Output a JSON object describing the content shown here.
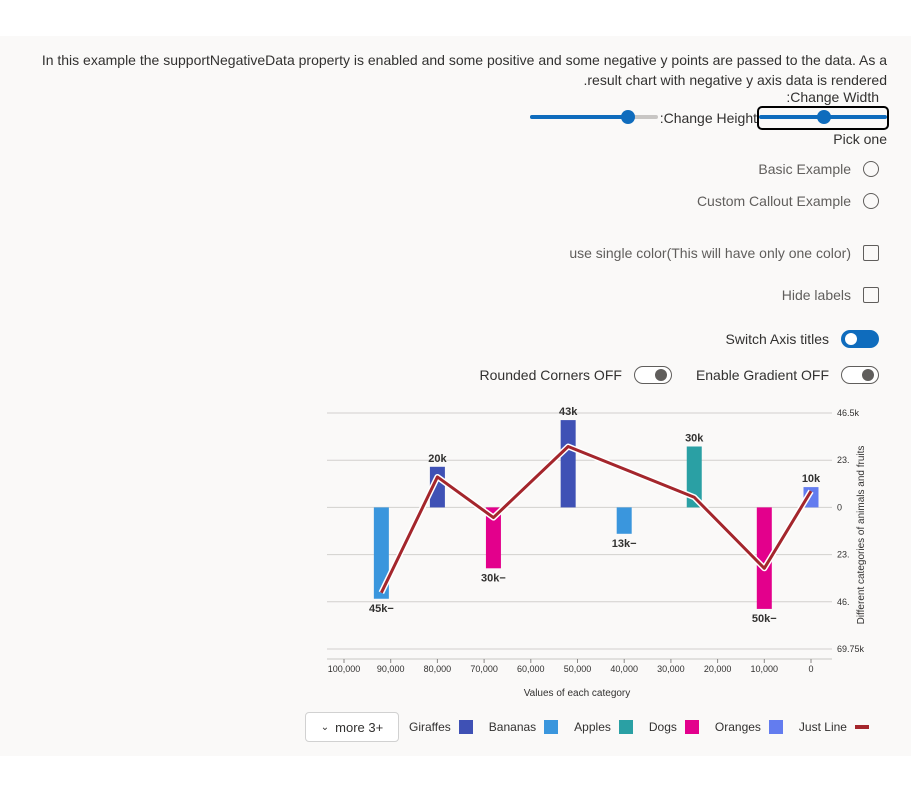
{
  "description": {
    "line1": "In this example the supportNegativeData property is enabled and some positive and some negative y points are passed to the data. As a",
    "line2": ".result chart with negative y axis data is rendered"
  },
  "controls": {
    "change_width_label": ":Change Width",
    "change_height_label": ":Change Height",
    "width_slider_value": 0.78,
    "height_slider_value": 0.5,
    "pick_one_label": "Pick one",
    "radio_basic_label": "Basic Example",
    "radio_custom_label": "Custom Callout Example",
    "single_color_label": "use single color(This will have only one color)",
    "hide_labels_label": "Hide labels",
    "switch_axis_label": "Switch Axis titles",
    "rounded_corners_label": "Rounded Corners OFF",
    "enable_gradient_label": "Enable Gradient OFF"
  },
  "colors": {
    "giraffes": "#3f51b5",
    "bananas": "#3a96dd",
    "apples": "#2aa0a4",
    "dogs": "#e3008c",
    "oranges": "#637cef",
    "line": "#a4262c",
    "toggle_on": "#0f6cbd"
  },
  "legend": {
    "more_label": "more 3+",
    "items": [
      "Giraffes",
      "Bananas",
      "Apples",
      "Dogs",
      "Oranges",
      "Just Line"
    ]
  },
  "chart_data": {
    "type": "bar",
    "xlabel": "Values of each category",
    "ylabel": "Different categories of animals and fruits",
    "x_ticks": [
      "100,000",
      "90,000",
      "80,000",
      "70,000",
      "60,000",
      "50,000",
      "40,000",
      "30,000",
      "20,000",
      "10,000",
      "0"
    ],
    "x_domain": [
      100000,
      0
    ],
    "y_ticks": [
      "46.5k",
      "23.",
      "0",
      "23.",
      "46.",
      "69.75k"
    ],
    "ylim": [
      -69750,
      46500
    ],
    "series": [
      {
        "name": "Bananas",
        "color": "#3a96dd",
        "x": 92000,
        "y": -45000,
        "label": "45k"
      },
      {
        "name": "Giraffes",
        "color": "#3f51b5",
        "x": 80000,
        "y": 20000,
        "label": "20k"
      },
      {
        "name": "Dogs",
        "color": "#e3008c",
        "x": 68000,
        "y": -30000,
        "label": "30k"
      },
      {
        "name": "Giraffes",
        "color": "#3f51b5",
        "x": 52000,
        "y": 43000,
        "label": "43k"
      },
      {
        "name": "Bananas",
        "color": "#3a96dd",
        "x": 40000,
        "y": -13000,
        "label": "13k"
      },
      {
        "name": "Apples",
        "color": "#2aa0a4",
        "x": 25000,
        "y": 30000,
        "label": "30k"
      },
      {
        "name": "Dogs",
        "color": "#e3008c",
        "x": 10000,
        "y": -50000,
        "label": "50k"
      },
      {
        "name": "Oranges",
        "color": "#637cef",
        "x": 0,
        "y": 10000,
        "label": "10k"
      }
    ],
    "line": {
      "name": "Just Line",
      "points": [
        [
          92000,
          -42000
        ],
        [
          80000,
          15000
        ],
        [
          68000,
          -5000
        ],
        [
          52000,
          30000
        ],
        [
          25000,
          5000
        ],
        [
          10000,
          -30000
        ],
        [
          0,
          8000
        ]
      ]
    }
  }
}
